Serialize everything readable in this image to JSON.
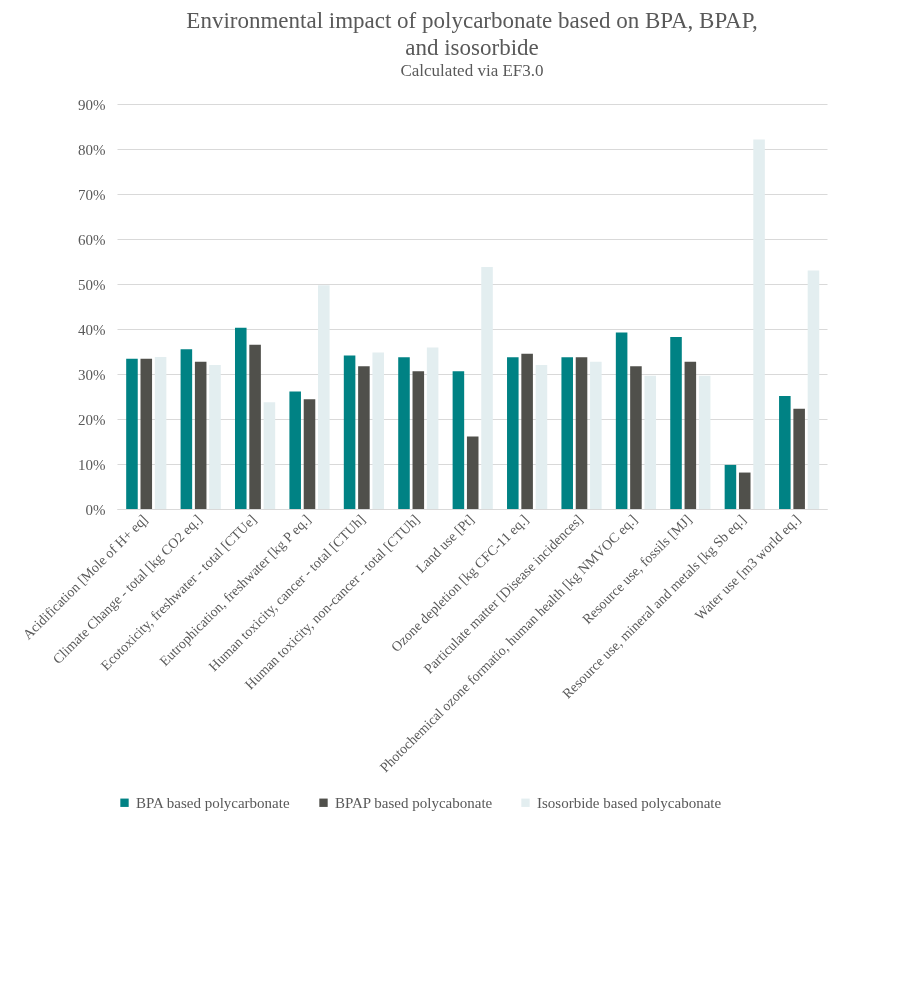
{
  "chart_data": {
    "type": "bar",
    "title": "Environmental impact of polycarbonate based on BPA, BPAP, and isosorbide",
    "subtitle": "Calculated via EF3.0",
    "categories": [
      "Acidification [Mole of H+ eq]",
      "Climate Change - total [kg CO2 eq.]",
      "Ecotoxicity, freshwater - total [CTUe]",
      "Eutrophication, freshwater [kg P eq.]",
      "Human toxicity, cancer - total [CTUh]",
      "Human toxicity, non-cancer - total [CTUh]",
      "Land use [Pt]",
      "Ozone depletion [kg CFC-11 eq.]",
      "Particulate matter [Disease incidences]",
      "Photochemical ozone formatio, human health [kg NMVOC eq.]",
      "Resource use, fossils [MJ]",
      "Resource use, mineral and metals [kg Sb eq.]",
      "Water use [m3 world eq.]"
    ],
    "series": [
      {
        "name": "BPA based polycarbonate",
        "color": "#008284",
        "values": [
          33.4,
          35.5,
          40.3,
          26.1,
          34.1,
          33.7,
          30.6,
          33.7,
          33.7,
          39.2,
          38.2,
          9.8,
          25.1
        ]
      },
      {
        "name": "BPAP based polycabonate",
        "color": "#50504b",
        "values": [
          33.4,
          32.7,
          36.5,
          24.4,
          31.7,
          30.6,
          16.1,
          34.5,
          33.7,
          31.7,
          32.7,
          8.1,
          22.3
        ]
      },
      {
        "name": "Isosorbide based polycabonate",
        "color": "#e3eef0",
        "values": [
          33.8,
          32.0,
          23.7,
          49.7,
          34.8,
          35.9,
          53.8,
          32.0,
          32.7,
          29.6,
          29.6,
          82.1,
          53.0
        ]
      }
    ],
    "ylim": [
      0,
      90
    ],
    "yticks": [
      {
        "value": 0,
        "label": "0%"
      },
      {
        "value": 10,
        "label": "10%"
      },
      {
        "value": 20,
        "label": "20%"
      },
      {
        "value": 30,
        "label": "30%"
      },
      {
        "value": 40,
        "label": "40%"
      },
      {
        "value": 50,
        "label": "50%"
      },
      {
        "value": 60,
        "label": "60%"
      },
      {
        "value": 70,
        "label": "70%"
      },
      {
        "value": 80,
        "label": "80%"
      },
      {
        "value": 90,
        "label": "90%"
      }
    ],
    "grid": "y",
    "legend": "bottom"
  }
}
